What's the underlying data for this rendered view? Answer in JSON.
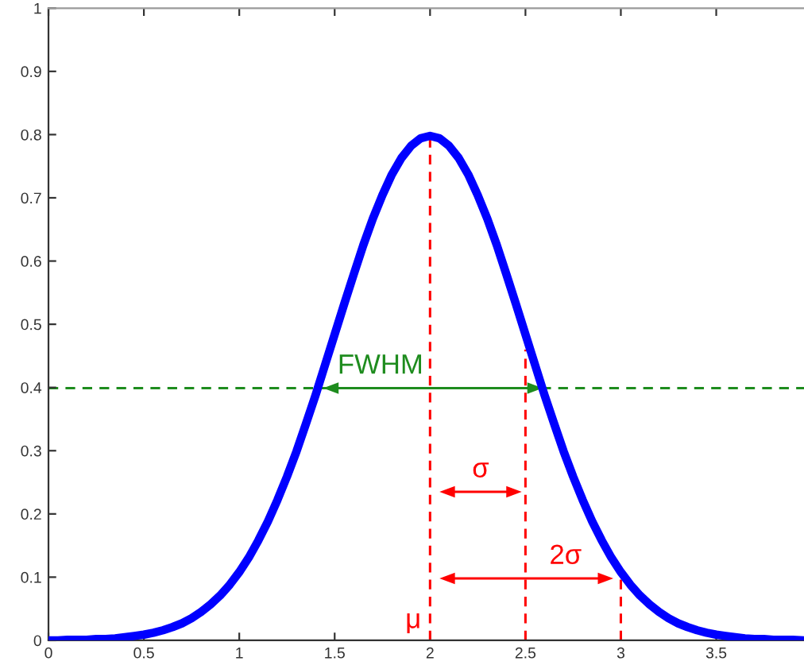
{
  "chart_data": {
    "type": "line",
    "xlim": [
      0,
      3.96
    ],
    "ylim": [
      0,
      1
    ],
    "xticks": [
      0,
      0.5,
      1,
      1.5,
      2,
      2.5,
      3,
      3.5
    ],
    "yticks": [
      0,
      0.1,
      0.2,
      0.3,
      0.4,
      0.5,
      0.6,
      0.7,
      0.8,
      0.9,
      1
    ],
    "legend": false,
    "ref_lines": [
      {
        "axis": "y",
        "value": 0.399,
        "color": "#1e8c1e",
        "line_style": "dashed"
      }
    ],
    "series": [
      {
        "color": "#0000ff",
        "line_style": "solid",
        "x": [
          0,
          0.05,
          0.1,
          0.15,
          0.2,
          0.25,
          0.3,
          0.35,
          0.4,
          0.45,
          0.5,
          0.55,
          0.6,
          0.65,
          0.7,
          0.75,
          0.8,
          0.85,
          0.9,
          0.95,
          1,
          1.05,
          1.1,
          1.15,
          1.2,
          1.25,
          1.3,
          1.35,
          1.4,
          1.45,
          1.5,
          1.55,
          1.6,
          1.65,
          1.7,
          1.75,
          1.8,
          1.85,
          1.9,
          1.95,
          2,
          2.05,
          2.1,
          2.15,
          2.2,
          2.25,
          2.3,
          2.35,
          2.4,
          2.45,
          2.5,
          2.55,
          2.6,
          2.65,
          2.7,
          2.75,
          2.8,
          2.85,
          2.9,
          2.95,
          3,
          3.05,
          3.1,
          3.15,
          3.2,
          3.25,
          3.3,
          3.35,
          3.4,
          3.45,
          3.5,
          3.55,
          3.6,
          3.65,
          3.7,
          3.75,
          3.8,
          3.85,
          3.9,
          3.95
        ],
        "values": [
          0,
          0,
          0.001,
          0.001,
          0.001,
          0.002,
          0.002,
          0.003,
          0.005,
          0.007,
          0.009,
          0.012,
          0.016,
          0.021,
          0.027,
          0.035,
          0.045,
          0.057,
          0.071,
          0.088,
          0.108,
          0.131,
          0.158,
          0.188,
          0.222,
          0.259,
          0.299,
          0.343,
          0.388,
          0.436,
          0.484,
          0.532,
          0.579,
          0.625,
          0.667,
          0.704,
          0.737,
          0.763,
          0.782,
          0.794,
          0.798,
          0.794,
          0.782,
          0.763,
          0.737,
          0.704,
          0.667,
          0.625,
          0.579,
          0.532,
          0.484,
          0.436,
          0.388,
          0.343,
          0.299,
          0.259,
          0.222,
          0.188,
          0.158,
          0.131,
          0.108,
          0.088,
          0.071,
          0.057,
          0.045,
          0.035,
          0.027,
          0.021,
          0.016,
          0.012,
          0.009,
          0.007,
          0.005,
          0.003,
          0.002,
          0.002,
          0.001,
          0.001,
          0.001,
          0
        ]
      },
      {
        "name": "μ",
        "color": "#ff0000",
        "line_style": "dashed",
        "x": [
          2,
          2
        ],
        "values": [
          0,
          0.798
        ]
      },
      {
        "color": "#ff0000",
        "line_style": "dashed",
        "x": [
          2.5,
          2.5
        ],
        "values": [
          0,
          0.46
        ]
      },
      {
        "color": "#ff0000",
        "line_style": "dashed",
        "x": [
          3,
          3
        ],
        "values": [
          0,
          0.1
        ]
      },
      {
        "name": "FWHM",
        "color": "#1e8c1e",
        "line_style": "solid",
        "marker": "triangle",
        "x": [
          1.48,
          2.55
        ],
        "values": [
          0.399,
          0.399
        ]
      },
      {
        "name": "σ",
        "color": "#ff0000",
        "line_style": "solid",
        "marker": "triangle",
        "x": [
          2.09,
          2.44
        ],
        "values": [
          0.235,
          0.235
        ]
      },
      {
        "name": "2σ",
        "color": "#ff0000",
        "line_style": "solid",
        "marker": "triangle",
        "x": [
          2.09,
          2.92
        ],
        "values": [
          0.098,
          0.098
        ]
      }
    ]
  }
}
